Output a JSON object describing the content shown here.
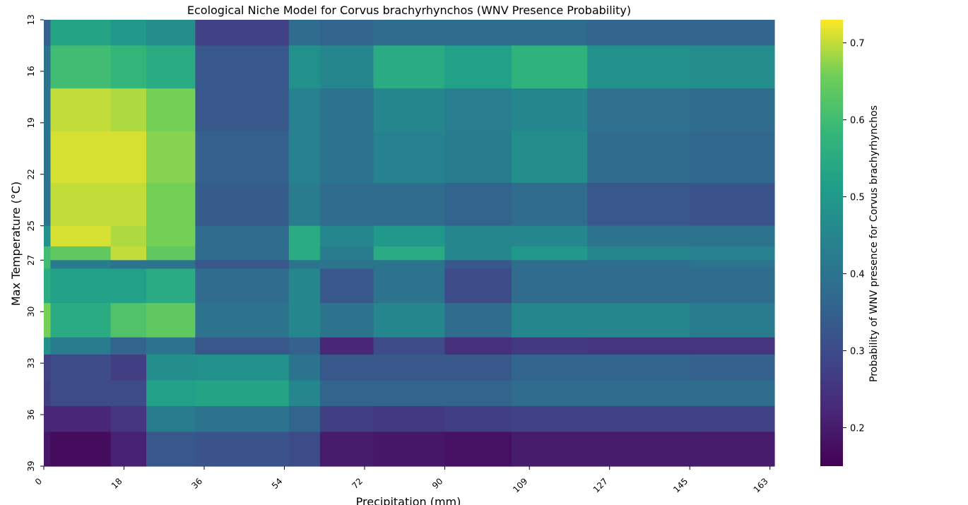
{
  "chart_data": {
    "type": "heatmap",
    "title": "Ecological Niche Model for Corvus brachyrhynchos (WNV Presence Probability)",
    "xlabel": "Precipitation (mm)",
    "ylabel": "Max Temperature (°C)",
    "xlim": [
      0,
      164
    ],
    "ylim": [
      13,
      39
    ],
    "x_tick_labels": [
      "0",
      "18",
      "36",
      "54",
      "72",
      "90",
      "109",
      "127",
      "145",
      "163"
    ],
    "y_tick_labels": [
      "13",
      "16",
      "19",
      "22",
      "25",
      "27",
      "30",
      "33",
      "36",
      "39"
    ],
    "colorbar": {
      "label": "Probability of WNV presence for Corvus brachyrhynchos",
      "range": [
        0.15,
        0.73
      ],
      "ticks": [
        "0.2",
        "0.3",
        "0.4",
        "0.5",
        "0.6",
        "0.7"
      ],
      "colormap": "viridis"
    },
    "col_edges": [
      0,
      1.5,
      15,
      23,
      34,
      55,
      62,
      74,
      90,
      105,
      122,
      145,
      164
    ],
    "row_edges": [
      13,
      14.5,
      17,
      19.5,
      22.5,
      25,
      26.2,
      27,
      27.5,
      29.5,
      31.5,
      32.5,
      34,
      35.5,
      37,
      39
    ],
    "values": [
      [
        0.35,
        0.53,
        0.5,
        0.47,
        0.28,
        0.38,
        0.36,
        0.38,
        0.38,
        0.38,
        0.36,
        0.36
      ],
      [
        0.4,
        0.6,
        0.58,
        0.55,
        0.33,
        0.48,
        0.45,
        0.55,
        0.52,
        0.57,
        0.48,
        0.47
      ],
      [
        0.4,
        0.7,
        0.69,
        0.66,
        0.33,
        0.44,
        0.4,
        0.45,
        0.43,
        0.45,
        0.39,
        0.38
      ],
      [
        0.4,
        0.71,
        0.71,
        0.67,
        0.35,
        0.44,
        0.4,
        0.44,
        0.42,
        0.47,
        0.38,
        0.37
      ],
      [
        0.4,
        0.7,
        0.7,
        0.66,
        0.34,
        0.42,
        0.38,
        0.38,
        0.36,
        0.38,
        0.33,
        0.32
      ],
      [
        0.48,
        0.71,
        0.69,
        0.66,
        0.38,
        0.55,
        0.45,
        0.5,
        0.45,
        0.45,
        0.4,
        0.4
      ],
      [
        0.6,
        0.64,
        0.7,
        0.64,
        0.38,
        0.55,
        0.42,
        0.55,
        0.45,
        0.5,
        0.45,
        0.44
      ],
      [
        0.6,
        0.42,
        0.4,
        0.4,
        0.33,
        0.4,
        0.4,
        0.4,
        0.33,
        0.38,
        0.38,
        0.4
      ],
      [
        0.55,
        0.52,
        0.52,
        0.55,
        0.38,
        0.45,
        0.33,
        0.4,
        0.3,
        0.38,
        0.38,
        0.38
      ],
      [
        0.66,
        0.55,
        0.62,
        0.64,
        0.4,
        0.45,
        0.4,
        0.45,
        0.38,
        0.45,
        0.45,
        0.42
      ],
      [
        0.48,
        0.42,
        0.36,
        0.4,
        0.33,
        0.35,
        0.22,
        0.3,
        0.24,
        0.26,
        0.25,
        0.25
      ],
      [
        0.28,
        0.3,
        0.27,
        0.47,
        0.48,
        0.4,
        0.33,
        0.33,
        0.33,
        0.36,
        0.36,
        0.35
      ],
      [
        0.27,
        0.3,
        0.3,
        0.52,
        0.53,
        0.45,
        0.36,
        0.36,
        0.36,
        0.38,
        0.38,
        0.38
      ],
      [
        0.22,
        0.22,
        0.25,
        0.42,
        0.4,
        0.36,
        0.27,
        0.26,
        0.27,
        0.28,
        0.28,
        0.28
      ],
      [
        0.19,
        0.17,
        0.21,
        0.33,
        0.32,
        0.3,
        0.2,
        0.19,
        0.18,
        0.2,
        0.2,
        0.2
      ]
    ]
  }
}
